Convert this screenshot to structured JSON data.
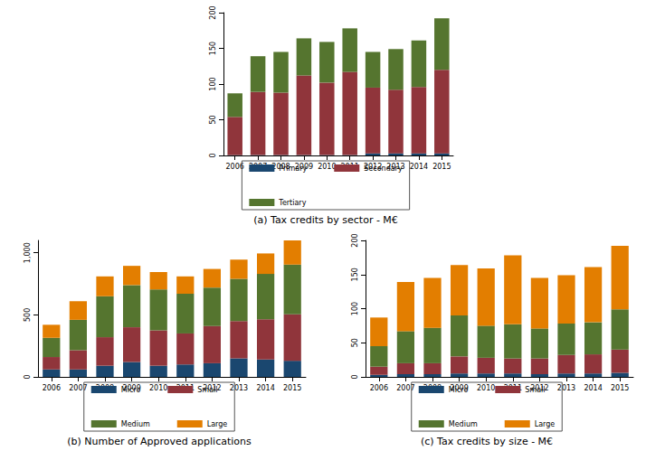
{
  "chart_data": [
    {
      "type": "bar",
      "title": "(a) Tax credits by sector - M€",
      "stacked": true,
      "grid": false,
      "legend": "bottom",
      "categories": [
        "2006",
        "2007",
        "2008",
        "2009",
        "2010",
        "2011",
        "2012",
        "2013",
        "2014",
        "2015"
      ],
      "ylim": [
        0,
        200
      ],
      "yticks": [
        0,
        50,
        100,
        150,
        200
      ],
      "series": [
        {
          "name": "Primary",
          "color": "#1a476f",
          "values": [
            0.5,
            0.5,
            0.5,
            0.5,
            0.5,
            0.5,
            3,
            3,
            3,
            3
          ]
        },
        {
          "name": "Secondary",
          "color": "#90353b",
          "values": [
            53.5,
            88.5,
            87.5,
            111.5,
            101.5,
            116.5,
            92,
            89,
            93,
            117
          ]
        },
        {
          "name": "Tertiary",
          "color": "#55752f",
          "values": [
            33,
            50,
            57,
            52,
            57,
            61,
            50,
            57,
            65,
            72
          ]
        }
      ]
    },
    {
      "type": "bar",
      "title": "(b) Number of Approved applications",
      "stacked": true,
      "grid": false,
      "legend": "bottom",
      "categories": [
        "2006",
        "2007",
        "2008",
        "2009",
        "2010",
        "2011",
        "2012",
        "2013",
        "2014",
        "2015"
      ],
      "ylim": [
        0,
        1100
      ],
      "yticks": [
        0,
        500,
        {
          "value": 1000,
          "label": "1,000"
        }
      ],
      "series": [
        {
          "name": "Micro",
          "color": "#1a476f",
          "values": [
            60,
            60,
            90,
            120,
            90,
            100,
            110,
            150,
            140,
            130
          ]
        },
        {
          "name": "Small",
          "color": "#90353b",
          "values": [
            100,
            155,
            230,
            280,
            285,
            250,
            300,
            300,
            325,
            375
          ]
        },
        {
          "name": "Medium",
          "color": "#55752f",
          "values": [
            155,
            245,
            330,
            340,
            330,
            320,
            310,
            340,
            365,
            400
          ]
        },
        {
          "name": "Large",
          "color": "#e37e00",
          "values": [
            105,
            150,
            160,
            155,
            140,
            140,
            150,
            155,
            165,
            195
          ]
        }
      ]
    },
    {
      "type": "bar",
      "title": "(c) Tax credits by size - M€",
      "stacked": true,
      "grid": false,
      "legend": "bottom",
      "categories": [
        "2006",
        "2007",
        "2008",
        "2009",
        "2010",
        "2011",
        "2012",
        "2013",
        "2014",
        "2015"
      ],
      "ylim": [
        0,
        200
      ],
      "yticks": [
        0,
        50,
        100,
        150,
        200
      ],
      "series": [
        {
          "name": "Micro",
          "color": "#1a476f",
          "values": [
            3,
            4,
            4,
            5,
            5,
            5,
            4,
            5,
            5,
            6
          ]
        },
        {
          "name": "Small",
          "color": "#90353b",
          "values": [
            12,
            16,
            16,
            25,
            23,
            22,
            23,
            27,
            28,
            34
          ]
        },
        {
          "name": "Medium",
          "color": "#55752f",
          "values": [
            30,
            47,
            52,
            60,
            47,
            50,
            44,
            46,
            47,
            59
          ]
        },
        {
          "name": "Large",
          "color": "#e37e00",
          "values": [
            42,
            72,
            73,
            74,
            84,
            101,
            74,
            71,
            81,
            93
          ]
        }
      ]
    }
  ]
}
